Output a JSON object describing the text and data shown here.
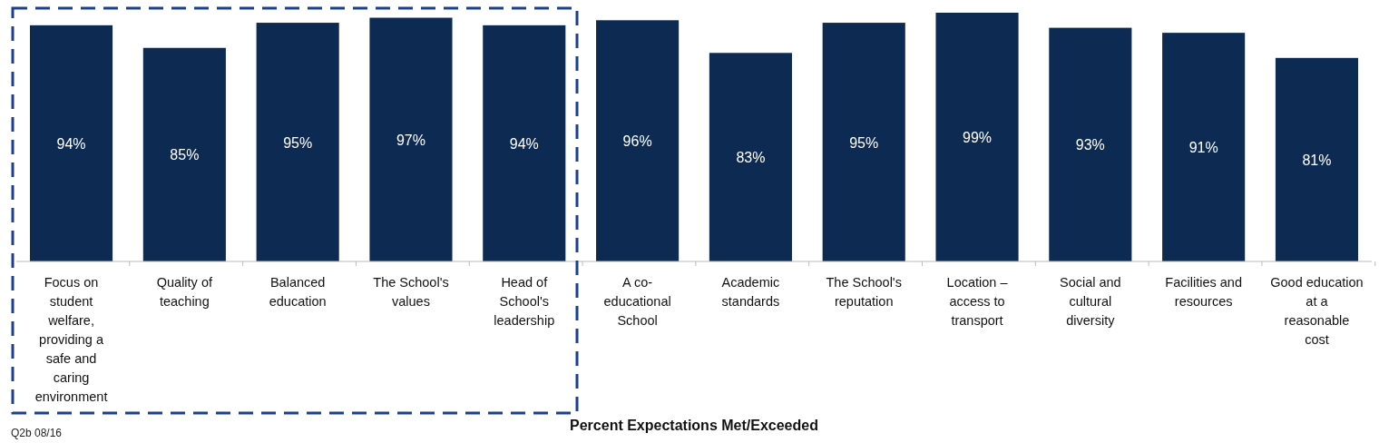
{
  "chart_data": {
    "type": "bar",
    "xlabel": "Percent Expectations Met/Exceeded",
    "categories": [
      "Focus on student welfare, providing a safe and caring environment",
      "Quality of teaching",
      "Balanced education",
      "The School's values",
      "Head of School's leadership",
      "A co-educational School",
      "Academic standards",
      "The School's reputation",
      "Location – access to transport",
      "Social and cultural diversity",
      "Facilities and resources",
      "Good education at a reasonable cost"
    ],
    "values": [
      94,
      85,
      95,
      97,
      94,
      96,
      83,
      95,
      99,
      93,
      91,
      81
    ],
    "value_labels": [
      "94%",
      "85%",
      "95%",
      "97%",
      "94%",
      "96%",
      "83%",
      "95%",
      "99%",
      "93%",
      "91%",
      "81%"
    ],
    "color": "#0d2a52",
    "annotations": [
      "Q2b 08/16"
    ]
  }
}
